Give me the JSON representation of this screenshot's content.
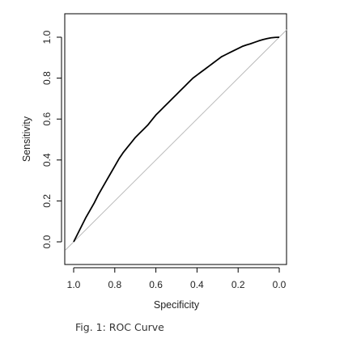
{
  "chart_data": {
    "type": "line",
    "xlabel": "Specificity",
    "ylabel": "Sensitivity",
    "x_reversed": true,
    "xlim": [
      1.0,
      0.0
    ],
    "ylim": [
      0.0,
      1.0
    ],
    "x_ticks": [
      1.0,
      0.8,
      0.6,
      0.4,
      0.2,
      0.0
    ],
    "x_tick_labels": [
      "1.0",
      "0.8",
      "0.6",
      "0.4",
      "0.2",
      "0.0"
    ],
    "y_ticks": [
      0.0,
      0.2,
      0.4,
      0.6,
      0.8,
      1.0
    ],
    "y_tick_labels": [
      "0.0",
      "0.2",
      "0.4",
      "0.6",
      "0.8",
      "1.0"
    ],
    "grid": false,
    "series": [
      {
        "x": [
          1.0,
          0.98,
          0.96,
          0.94,
          0.92,
          0.9,
          0.88,
          0.86,
          0.84,
          0.82,
          0.8,
          0.78,
          0.76,
          0.74,
          0.72,
          0.7,
          0.68,
          0.66,
          0.64,
          0.62,
          0.6,
          0.58,
          0.56,
          0.54,
          0.52,
          0.5,
          0.48,
          0.46,
          0.44,
          0.42,
          0.4,
          0.38,
          0.36,
          0.34,
          0.32,
          0.3,
          0.28,
          0.26,
          0.24,
          0.22,
          0.2,
          0.18,
          0.16,
          0.14,
          0.12,
          0.1,
          0.08,
          0.06,
          0.04,
          0.02,
          0.0
        ],
        "y": [
          0.0,
          0.04,
          0.08,
          0.12,
          0.155,
          0.19,
          0.23,
          0.265,
          0.3,
          0.335,
          0.37,
          0.405,
          0.435,
          0.46,
          0.485,
          0.51,
          0.53,
          0.55,
          0.57,
          0.595,
          0.62,
          0.64,
          0.66,
          0.68,
          0.7,
          0.72,
          0.74,
          0.76,
          0.78,
          0.8,
          0.815,
          0.83,
          0.845,
          0.86,
          0.875,
          0.89,
          0.905,
          0.915,
          0.925,
          0.935,
          0.945,
          0.955,
          0.962,
          0.968,
          0.975,
          0.982,
          0.988,
          0.993,
          0.997,
          0.999,
          1.0
        ]
      }
    ],
    "reference_line": {
      "x": [
        1.0,
        0.0
      ],
      "y": [
        0.0,
        1.0
      ]
    }
  },
  "caption": "Fig. 1: ROC Curve",
  "colors": {
    "curve": "#000000",
    "reference": "#b5b5b5",
    "axis": "#000000"
  }
}
